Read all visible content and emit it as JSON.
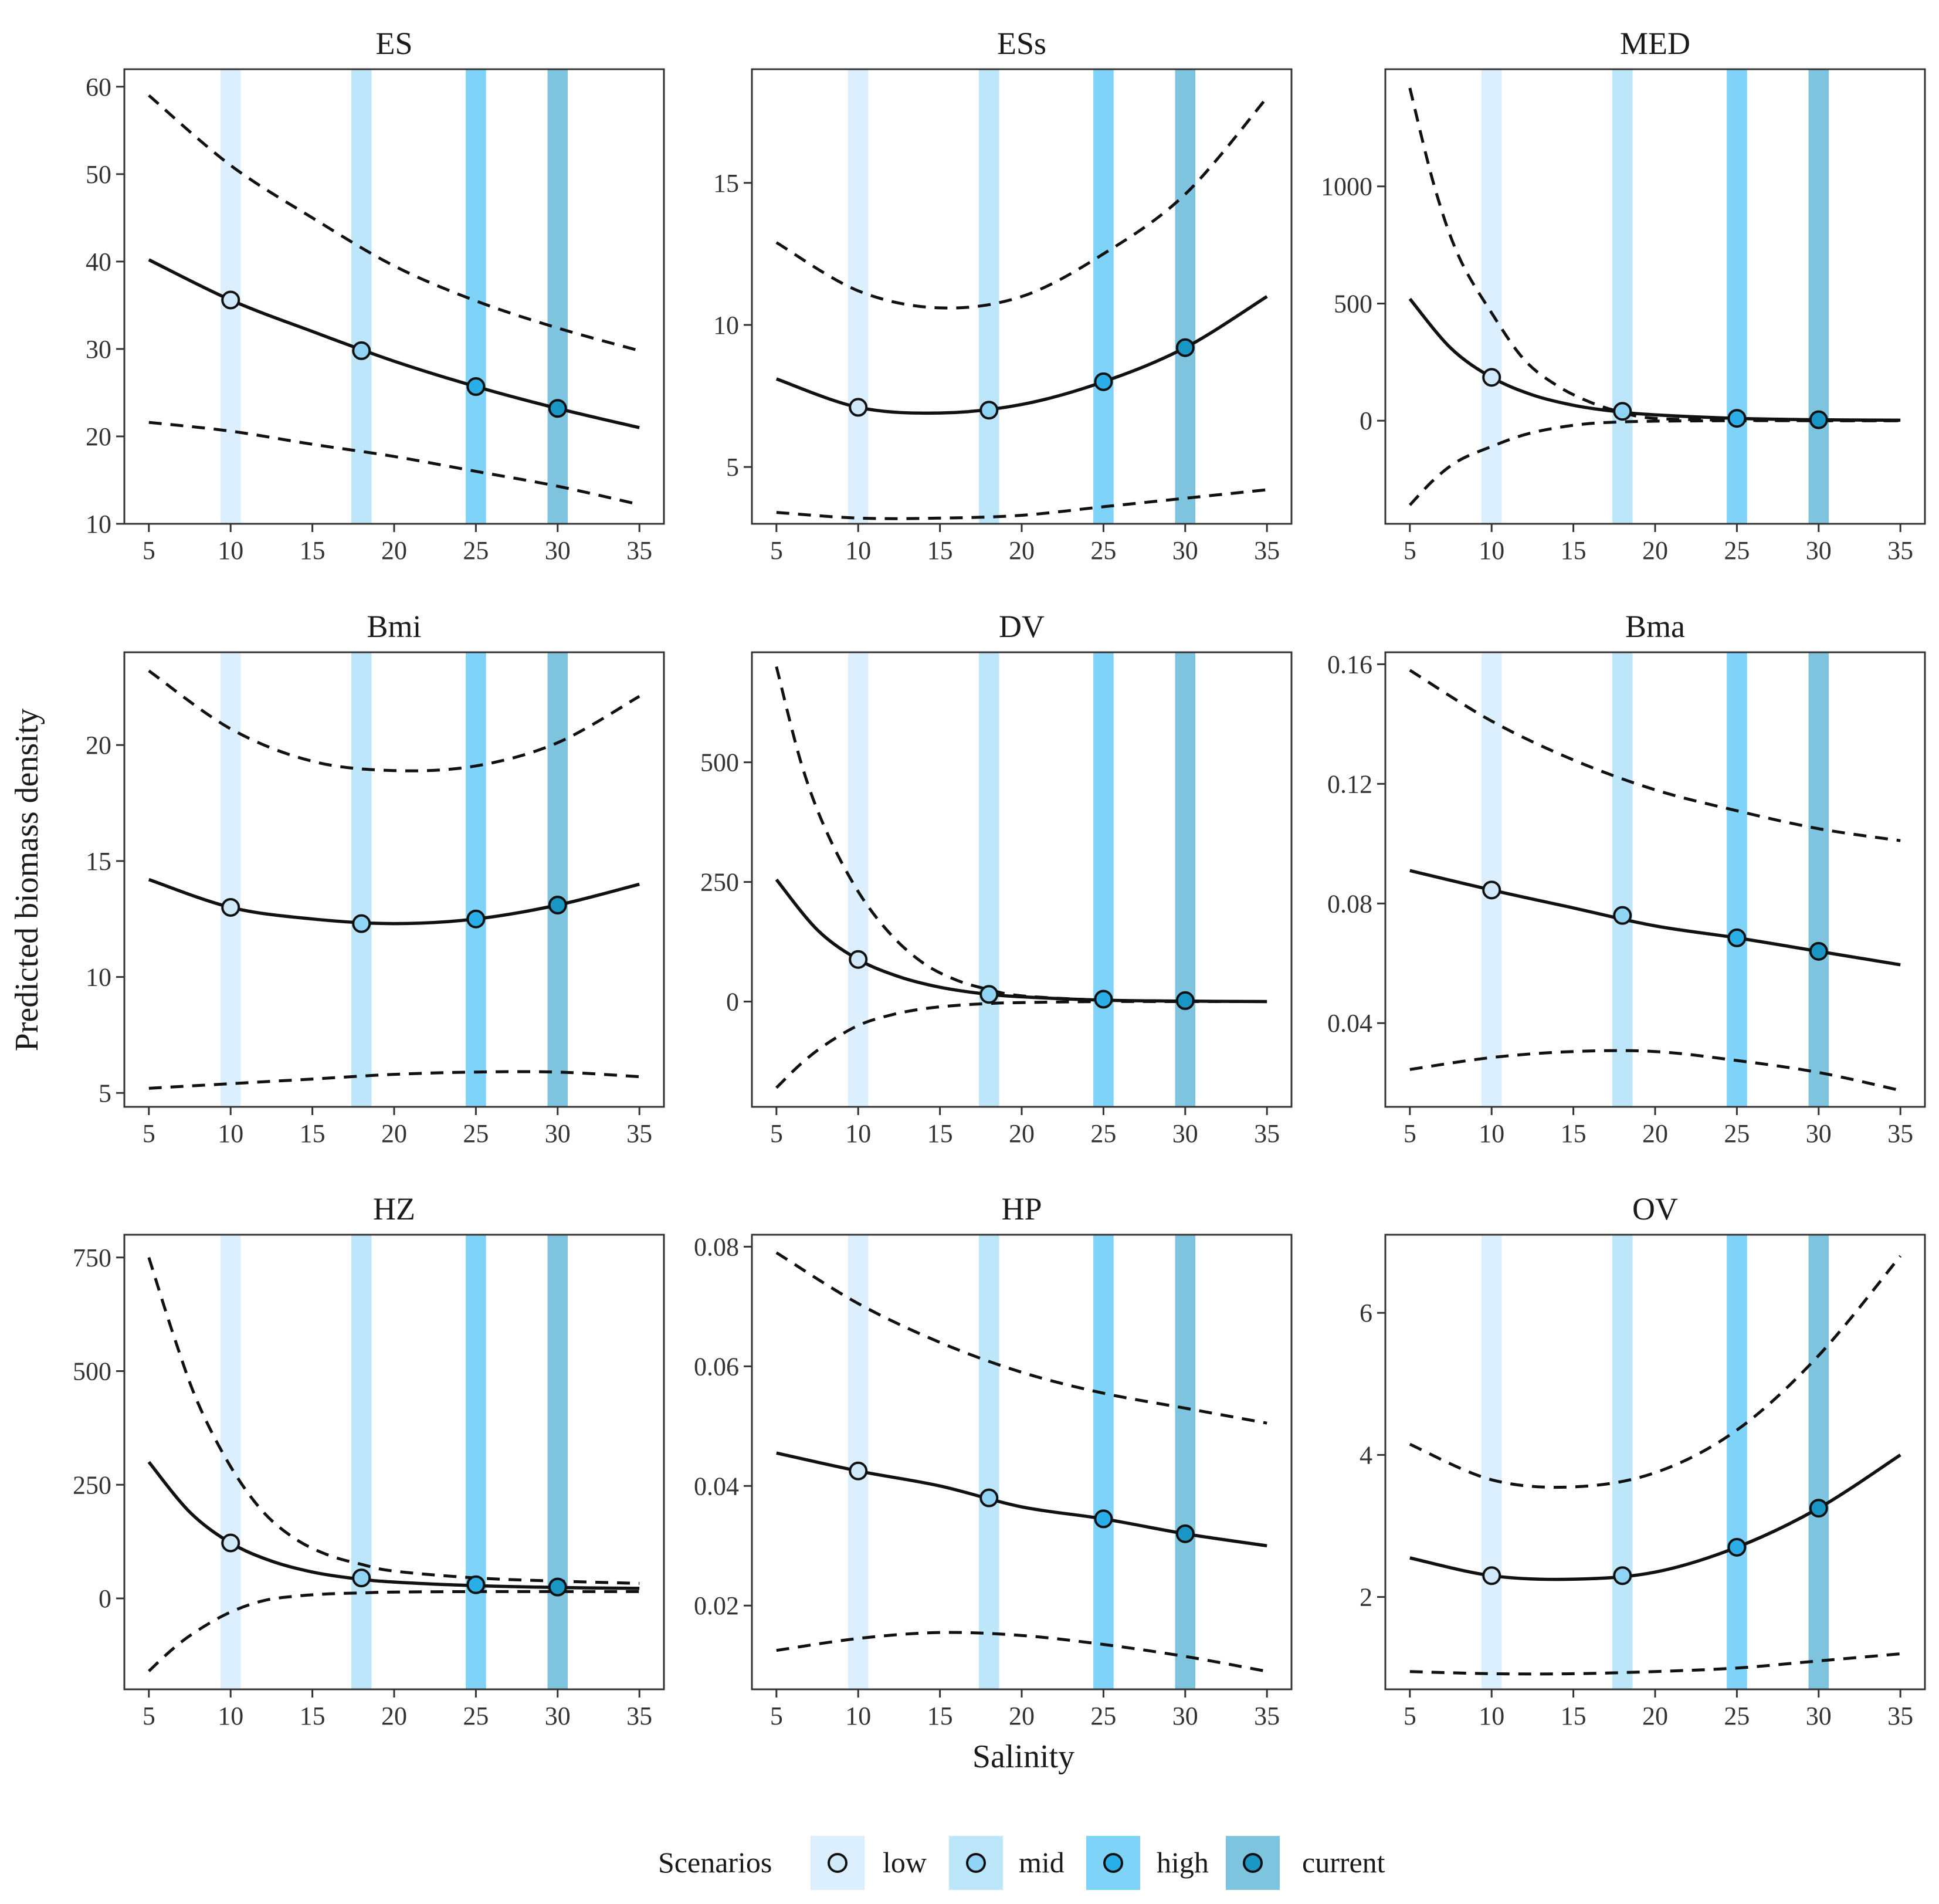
{
  "figure": {
    "ylabel": "Predicted biomass density",
    "xlabel": "Salinity",
    "legend": {
      "title": "Scenarios",
      "entries": [
        {
          "label": "low",
          "band_color": "#dcefff",
          "point_color": "#cfe9fb"
        },
        {
          "label": "mid",
          "band_color": "#bde6fa",
          "point_color": "#8fd3f5"
        },
        {
          "label": "high",
          "band_color": "#7fd3f8",
          "point_color": "#2aaee8"
        },
        {
          "label": "current",
          "band_color": "#7ec4df",
          "point_color": "#1996c4"
        }
      ]
    }
  },
  "chart_data": [
    {
      "type": "line",
      "title": "ES",
      "xlim": [
        3.5,
        36.5
      ],
      "ylim": [
        10,
        62
      ],
      "xticks": [
        5,
        10,
        15,
        20,
        25,
        30,
        35
      ],
      "yticks": [
        10,
        20,
        30,
        40,
        50,
        60
      ],
      "fit": {
        "x": [
          5,
          10,
          15,
          20,
          25,
          30,
          35
        ],
        "y": [
          40.2,
          35.6,
          32.0,
          28.6,
          25.7,
          23.2,
          21.0
        ]
      },
      "upper": {
        "x": [
          5,
          10,
          15,
          20,
          25,
          30,
          35
        ],
        "y": [
          59.0,
          51.0,
          45.0,
          39.5,
          35.5,
          32.4,
          29.8
        ]
      },
      "lower": {
        "x": [
          5,
          10,
          15,
          20,
          25,
          30,
          35
        ],
        "y": [
          21.6,
          20.6,
          19.1,
          17.7,
          16.0,
          14.3,
          12.2
        ]
      },
      "points": [
        35.6,
        29.8,
        25.7,
        23.2
      ]
    },
    {
      "type": "line",
      "title": "ESs",
      "xlim": [
        3.5,
        36.5
      ],
      "ylim": [
        3.0,
        19.0
      ],
      "xticks": [
        5,
        10,
        15,
        20,
        25,
        30,
        35
      ],
      "yticks": [
        5,
        10,
        15
      ],
      "fit": {
        "x": [
          5,
          10,
          15,
          20,
          25,
          30,
          35
        ],
        "y": [
          8.1,
          7.1,
          6.9,
          7.2,
          8.0,
          9.2,
          11.0
        ]
      },
      "upper": {
        "x": [
          5,
          10,
          15,
          20,
          25,
          30,
          35
        ],
        "y": [
          12.9,
          11.2,
          10.6,
          11.0,
          12.5,
          14.6,
          18.0
        ]
      },
      "lower": {
        "x": [
          5,
          10,
          15,
          20,
          25,
          30,
          35
        ],
        "y": [
          3.4,
          3.2,
          3.2,
          3.3,
          3.6,
          3.9,
          4.2
        ]
      },
      "points": [
        7.1,
        7.0,
        8.0,
        9.2
      ]
    },
    {
      "type": "line",
      "title": "MED",
      "xlim": [
        3.5,
        36.5
      ],
      "ylim": [
        -440,
        1500
      ],
      "xticks": [
        5,
        10,
        15,
        20,
        25,
        30,
        35
      ],
      "yticks": [
        0,
        500,
        1000
      ],
      "fit": {
        "x": [
          5,
          7.5,
          10,
          12.5,
          15,
          17.5,
          20,
          25,
          30,
          35
        ],
        "y": [
          520,
          310,
          185,
          110,
          66,
          40,
          25,
          10,
          4,
          2
        ]
      },
      "upper": {
        "x": [
          5,
          6.5,
          8,
          10,
          12,
          14,
          16,
          18,
          20,
          25,
          30,
          35
        ],
        "y": [
          1420,
          1000,
          700,
          460,
          260,
          150,
          80,
          35,
          10,
          2,
          0,
          0
        ]
      },
      "lower": {
        "x": [
          5,
          6.5,
          8,
          10,
          12,
          14,
          16,
          18,
          20,
          25,
          30,
          35
        ],
        "y": [
          -360,
          -250,
          -170,
          -110,
          -60,
          -30,
          -12,
          -5,
          -2,
          0,
          0,
          0
        ]
      },
      "points": [
        185,
        40,
        10,
        4
      ]
    },
    {
      "type": "line",
      "title": "Bmi",
      "xlim": [
        3.5,
        36.5
      ],
      "ylim": [
        4.4,
        24.0
      ],
      "xticks": [
        5,
        10,
        15,
        20,
        25,
        30,
        35
      ],
      "yticks": [
        5,
        10,
        15,
        20
      ],
      "fit": {
        "x": [
          5,
          10,
          15,
          20,
          25,
          30,
          35
        ],
        "y": [
          14.2,
          13.0,
          12.5,
          12.3,
          12.5,
          13.1,
          14.0
        ]
      },
      "upper": {
        "x": [
          5,
          10,
          15,
          20,
          25,
          30,
          35
        ],
        "y": [
          23.2,
          20.7,
          19.3,
          18.9,
          19.1,
          20.1,
          22.1
        ]
      },
      "lower": {
        "x": [
          5,
          10,
          15,
          20,
          25,
          30,
          35
        ],
        "y": [
          5.2,
          5.4,
          5.6,
          5.8,
          5.9,
          5.9,
          5.7
        ]
      },
      "points": [
        13.0,
        12.3,
        12.5,
        13.1
      ]
    },
    {
      "type": "line",
      "title": "DV",
      "xlim": [
        3.5,
        36.5
      ],
      "ylim": [
        -220,
        730
      ],
      "xticks": [
        5,
        10,
        15,
        20,
        25,
        30,
        35
      ],
      "yticks": [
        0,
        250,
        500
      ],
      "fit": {
        "x": [
          5,
          7.5,
          10,
          12.5,
          15,
          17.5,
          20,
          25,
          30,
          35
        ],
        "y": [
          255,
          150,
          88,
          52,
          30,
          17,
          10,
          3,
          1,
          0
        ]
      },
      "upper": {
        "x": [
          5,
          6.5,
          8,
          10,
          12,
          14,
          16,
          18,
          20,
          25,
          30,
          35
        ],
        "y": [
          700,
          500,
          360,
          230,
          140,
          80,
          45,
          25,
          12,
          3,
          1,
          0
        ]
      },
      "lower": {
        "x": [
          5,
          6.5,
          8,
          10,
          12,
          14,
          16,
          18,
          20,
          25,
          30,
          35
        ],
        "y": [
          -180,
          -130,
          -90,
          -50,
          -28,
          -15,
          -8,
          -4,
          -2,
          0,
          0,
          0
        ]
      },
      "points": [
        88,
        15,
        5,
        2
      ]
    },
    {
      "type": "line",
      "title": "Bma",
      "xlim": [
        3.5,
        36.5
      ],
      "ylim": [
        0.012,
        0.164
      ],
      "xticks": [
        5,
        10,
        15,
        20,
        25,
        30,
        35
      ],
      "yticks": [
        0.04,
        0.08,
        0.12,
        0.16
      ],
      "fit": {
        "x": [
          5,
          10,
          15,
          20,
          25,
          30,
          35
        ],
        "y": [
          0.091,
          0.0845,
          0.0785,
          0.0725,
          0.0685,
          0.064,
          0.0595
        ]
      },
      "upper": {
        "x": [
          5,
          10,
          15,
          20,
          25,
          30,
          35
        ],
        "y": [
          0.158,
          0.141,
          0.128,
          0.118,
          0.111,
          0.105,
          0.101
        ]
      },
      "lower": {
        "x": [
          5,
          10,
          15,
          20,
          25,
          30,
          35
        ],
        "y": [
          0.0245,
          0.0285,
          0.0305,
          0.0305,
          0.0275,
          0.0235,
          0.0175
        ]
      },
      "points": [
        0.0845,
        0.076,
        0.0685,
        0.064
      ]
    },
    {
      "type": "line",
      "title": "HZ",
      "xlim": [
        3.5,
        36.5
      ],
      "ylim": [
        -200,
        800
      ],
      "xticks": [
        5,
        10,
        15,
        20,
        25,
        30,
        35
      ],
      "yticks": [
        0,
        250,
        500,
        750
      ],
      "fit": {
        "x": [
          5,
          7.5,
          10,
          12.5,
          15,
          17.5,
          20,
          25,
          30,
          35
        ],
        "y": [
          300,
          190,
          122,
          82,
          58,
          44,
          36,
          28,
          24,
          22
        ]
      },
      "upper": {
        "x": [
          5,
          6.5,
          8,
          10,
          12,
          14,
          16,
          18,
          20,
          25,
          30,
          35
        ],
        "y": [
          750,
          580,
          430,
          290,
          190,
          130,
          95,
          75,
          60,
          45,
          38,
          33
        ]
      },
      "lower": {
        "x": [
          5,
          6.5,
          8,
          10,
          12,
          14,
          16,
          18,
          20,
          25,
          30,
          35
        ],
        "y": [
          -160,
          -110,
          -70,
          -30,
          -5,
          5,
          10,
          12,
          14,
          15,
          15,
          15
        ]
      },
      "points": [
        122,
        45,
        30,
        25
      ]
    },
    {
      "type": "line",
      "title": "HP",
      "xlim": [
        3.5,
        36.5
      ],
      "ylim": [
        0.006,
        0.082
      ],
      "xticks": [
        5,
        10,
        15,
        20,
        25,
        30,
        35
      ],
      "yticks": [
        0.02,
        0.04,
        0.06,
        0.08
      ],
      "fit": {
        "x": [
          5,
          10,
          15,
          20,
          25,
          30,
          35
        ],
        "y": [
          0.0455,
          0.0425,
          0.04,
          0.0365,
          0.0345,
          0.032,
          0.03
        ]
      },
      "upper": {
        "x": [
          5,
          10,
          15,
          20,
          25,
          30,
          35
        ],
        "y": [
          0.079,
          0.0705,
          0.064,
          0.059,
          0.0555,
          0.053,
          0.0505
        ]
      },
      "lower": {
        "x": [
          5,
          10,
          15,
          20,
          25,
          30,
          35
        ],
        "y": [
          0.0125,
          0.0145,
          0.0155,
          0.015,
          0.0135,
          0.0115,
          0.009
        ]
      },
      "points": [
        0.0425,
        0.038,
        0.0345,
        0.032
      ]
    },
    {
      "type": "line",
      "title": "OV",
      "xlim": [
        3.5,
        36.5
      ],
      "ylim": [
        0.7,
        7.1
      ],
      "xticks": [
        5,
        10,
        15,
        20,
        25,
        30,
        35
      ],
      "yticks": [
        2,
        4,
        6
      ],
      "fit": {
        "x": [
          5,
          10,
          15,
          20,
          25,
          30,
          35
        ],
        "y": [
          2.55,
          2.3,
          2.25,
          2.35,
          2.7,
          3.25,
          4.0
        ]
      },
      "upper": {
        "x": [
          5,
          10,
          15,
          20,
          25,
          30,
          35
        ],
        "y": [
          4.15,
          3.65,
          3.55,
          3.75,
          4.35,
          5.4,
          6.8
        ]
      },
      "lower": {
        "x": [
          5,
          10,
          15,
          20,
          25,
          30,
          35
        ],
        "y": [
          0.95,
          0.92,
          0.92,
          0.95,
          1.0,
          1.1,
          1.2
        ]
      },
      "points": [
        2.3,
        2.3,
        2.7,
        3.25
      ]
    }
  ],
  "scenario_salinities": [
    10,
    18,
    25,
    30
  ]
}
